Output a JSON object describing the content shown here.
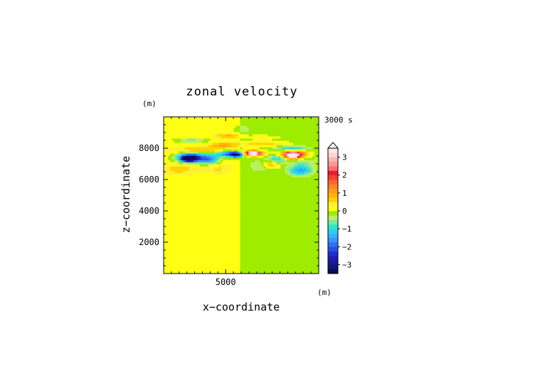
{
  "chart_data": {
    "type": "heatmap",
    "title": "zonal velocity",
    "xlabel": "x−coordinate",
    "ylabel": "z−coordinate",
    "x_unit": "(m)",
    "y_unit": "(m)",
    "time_label": "3000 s",
    "x_range": [
      1000,
      11000
    ],
    "y_range": [
      0,
      10000
    ],
    "x_ticks": [
      5000
    ],
    "x_tick_labels": [
      "5000"
    ],
    "y_ticks": [
      2000,
      4000,
      6000,
      8000
    ],
    "y_tick_labels": [
      "2000",
      "4000",
      "6000",
      "8000"
    ],
    "colorbar": {
      "levels": [
        -3.5,
        -3.25,
        -3,
        -2.75,
        -2.5,
        -2.25,
        -2,
        -1.75,
        -1.5,
        -1.25,
        -1,
        -0.75,
        -0.5,
        -0.25,
        0,
        0.25,
        0.5,
        0.75,
        1,
        1.25,
        1.5,
        1.75,
        2,
        2.25,
        2.5,
        2.75,
        3,
        3.25,
        3.5
      ],
      "colors": [
        "#0a0a60",
        "#14147a",
        "#1a1a95",
        "#1e1eb4",
        "#2030d0",
        "#2850e6",
        "#3070f0",
        "#3a92f8",
        "#32b4ff",
        "#28d2ee",
        "#2ee8c4",
        "#7be6a6",
        "#b8f060",
        "#9eec00",
        "#ffff14",
        "#fff030",
        "#ffd200",
        "#ffb400",
        "#ff9c1a",
        "#ff8228",
        "#ff6432",
        "#ff3a3a",
        "#e81e2e",
        "#ff6e6e",
        "#ff9696",
        "#ffb4b4",
        "#ffd2d2",
        "#ffe8e8"
      ],
      "tick_values": [
        3,
        2,
        1,
        0,
        -1,
        -2,
        -3
      ],
      "tick_labels": [
        "3",
        "2",
        "1",
        "0",
        "−1",
        "−2",
        "−3"
      ],
      "extend": "max"
    },
    "background_field": [
      {
        "x_range": [
          1000,
          6000
        ],
        "value": 0.15
      },
      {
        "x_range": [
          6000,
          11000
        ],
        "value": -0.1
      }
    ],
    "features": [
      {
        "x": 2800,
        "z": 7400,
        "rx": 900,
        "rz": 300,
        "value": -3.0
      },
      {
        "x": 2600,
        "z": 7350,
        "rx": 400,
        "rz": 160,
        "value": -3.4
      },
      {
        "x": 4000,
        "z": 7300,
        "rx": 600,
        "rz": 300,
        "value": -1.5
      },
      {
        "x": 5300,
        "z": 7650,
        "rx": 900,
        "rz": 200,
        "value": -2.2
      },
      {
        "x": 5700,
        "z": 7600,
        "rx": 350,
        "rz": 150,
        "value": -2.7
      },
      {
        "x": 3400,
        "z": 7900,
        "rx": 1800,
        "rz": 180,
        "value": 0.7
      },
      {
        "x": 2800,
        "z": 8500,
        "rx": 1000,
        "rz": 120,
        "value": -0.9
      },
      {
        "x": 5200,
        "z": 8800,
        "rx": 900,
        "rz": 150,
        "value": 0.7
      },
      {
        "x": 4800,
        "z": 8200,
        "rx": 900,
        "rz": 150,
        "value": 0.9
      },
      {
        "x": 6000,
        "z": 9200,
        "rx": 500,
        "rz": 300,
        "value": -0.4
      },
      {
        "x": 6700,
        "z": 7700,
        "rx": 700,
        "rz": 180,
        "value": 2.7
      },
      {
        "x": 6800,
        "z": 7650,
        "rx": 300,
        "rz": 120,
        "value": 3.3
      },
      {
        "x": 9400,
        "z": 7600,
        "rx": 800,
        "rz": 260,
        "value": 2.9
      },
      {
        "x": 9300,
        "z": 7550,
        "rx": 350,
        "rz": 150,
        "value": 3.3
      },
      {
        "x": 7900,
        "z": 7000,
        "rx": 500,
        "rz": 250,
        "value": 1.2
      },
      {
        "x": 8300,
        "z": 7300,
        "rx": 600,
        "rz": 250,
        "value": -1.1
      },
      {
        "x": 9800,
        "z": 6600,
        "rx": 700,
        "rz": 300,
        "value": -1.4
      },
      {
        "x": 7300,
        "z": 8300,
        "rx": 1500,
        "rz": 150,
        "value": 0.8
      },
      {
        "x": 9300,
        "z": 8000,
        "rx": 900,
        "rz": 150,
        "value": -1.2
      },
      {
        "x": 7400,
        "z": 8700,
        "rx": 1000,
        "rz": 120,
        "value": 0.4
      },
      {
        "x": 10000,
        "z": 7200,
        "rx": 800,
        "rz": 400,
        "value": -0.45
      },
      {
        "x": 2000,
        "z": 6700,
        "rx": 1100,
        "rz": 350,
        "value": 0.5
      },
      {
        "x": 4500,
        "z": 6700,
        "rx": 800,
        "rz": 300,
        "value": 0.4
      },
      {
        "x": 7300,
        "z": 6900,
        "rx": 700,
        "rz": 350,
        "value": -0.45
      }
    ]
  }
}
